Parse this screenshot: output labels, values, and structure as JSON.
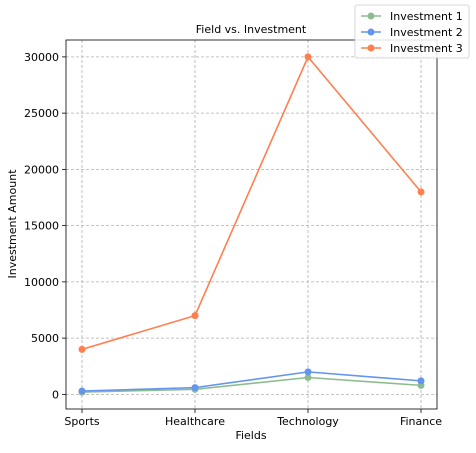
{
  "chart_data": {
    "type": "line",
    "title": "Field vs. Investment",
    "xlabel": "Fields",
    "ylabel": "Investment Amount",
    "categories": [
      "Sports",
      "Healthcare",
      "Technology",
      "Finance"
    ],
    "series": [
      {
        "name": "Investment 1",
        "color": "#8fbc8f",
        "values": [
          200,
          450,
          1500,
          800
        ]
      },
      {
        "name": "Investment 2",
        "color": "#6495ed",
        "values": [
          300,
          600,
          2000,
          1200
        ]
      },
      {
        "name": "Investment 3",
        "color": "#ff7f50",
        "values": [
          4000,
          7000,
          30000,
          18000
        ]
      }
    ],
    "ylim": [
      -1300,
      31500
    ],
    "yticks": [
      0,
      5000,
      10000,
      15000,
      20000,
      25000,
      30000
    ],
    "grid": true,
    "grid_style": "dashed",
    "legend_position": "top-right",
    "marker": "circle"
  }
}
